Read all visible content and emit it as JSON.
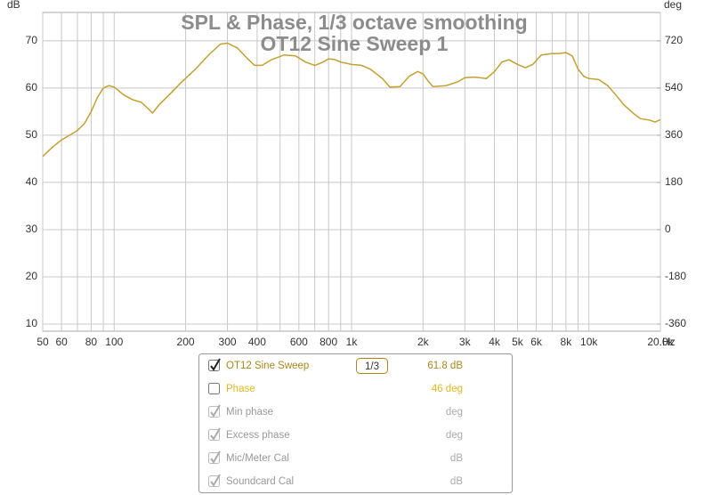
{
  "chart_data": {
    "type": "line",
    "title": "SPL & Phase, 1/3 octave smoothing",
    "subtitle": "OT12 Sine Sweep 1",
    "y_label": "dB",
    "y2_label": "deg",
    "x_label": "Hz",
    "log_x": true,
    "grid": true,
    "xlim": [
      50,
      20000
    ],
    "ylim": [
      8.5,
      76
    ],
    "y2lim": [
      -387,
      828
    ],
    "xticks": [
      50,
      60,
      80,
      100,
      200,
      300,
      400,
      600,
      800,
      {
        "value": 1000,
        "label": "1k"
      },
      {
        "value": 2000,
        "label": "2k"
      },
      {
        "value": 3000,
        "label": "3k"
      },
      {
        "value": 4000,
        "label": "4k"
      },
      {
        "value": 5000,
        "label": "5k"
      },
      {
        "value": 6000,
        "label": "6k"
      },
      {
        "value": 8000,
        "label": "8k"
      },
      {
        "value": 10000,
        "label": "10k"
      },
      {
        "value": 20000,
        "label": "20.0k"
      }
    ],
    "xminor": [
      70,
      90,
      500,
      700,
      900,
      7000,
      9000
    ],
    "yticks": [
      10,
      20,
      30,
      40,
      50,
      60,
      70
    ],
    "y2ticks": [
      -360,
      -180,
      0,
      180,
      360,
      540,
      720
    ],
    "x": [
      50,
      55,
      60,
      70,
      75,
      80,
      85,
      90,
      95,
      100,
      110,
      120,
      130,
      140,
      145,
      155,
      170,
      190,
      220,
      250,
      280,
      300,
      330,
      360,
      390,
      420,
      460,
      520,
      580,
      640,
      700,
      760,
      800,
      850,
      900,
      1000,
      1100,
      1200,
      1350,
      1450,
      1600,
      1750,
      1900,
      2000,
      2100,
      2200,
      2500,
      2800,
      3000,
      3300,
      3700,
      4000,
      4300,
      4600,
      5000,
      5400,
      5800,
      6300,
      7000,
      7500,
      8000,
      8500,
      9000,
      9500,
      10000,
      11000,
      12000,
      13000,
      14000,
      15500,
      16500,
      18000,
      19000,
      20000
    ],
    "series": [
      {
        "name": "OT12 Sine Sweep",
        "color": "#c4a030",
        "values": [
          45.5,
          47.5,
          49,
          51,
          52.5,
          55,
          58,
          60,
          60.5,
          60.2,
          58.5,
          57.5,
          57,
          55.5,
          54.7,
          56.5,
          58.5,
          61,
          64,
          67,
          69.3,
          69.5,
          68.5,
          66.5,
          64.8,
          64.8,
          66,
          67,
          66.8,
          65.5,
          64.8,
          65.5,
          66.2,
          66,
          65.5,
          65,
          64.8,
          64,
          62,
          60.2,
          60.3,
          62.5,
          63.5,
          63,
          61.5,
          60.3,
          60.5,
          61.3,
          62.2,
          62.3,
          62,
          63.5,
          65.5,
          66,
          65,
          64.3,
          65,
          67,
          67.3,
          67.3,
          67.5,
          66.8,
          64,
          62.5,
          62,
          61.8,
          60.5,
          58.5,
          56.5,
          54.5,
          53.5,
          53.2,
          52.8,
          53.3
        ]
      }
    ]
  },
  "legend_panel": {
    "rows": [
      {
        "checked": true,
        "enabled": true,
        "color": "#a8861c",
        "smoothing": "1/3",
        "readout": "61.8 dB"
      },
      {
        "label": "Phase",
        "checked": false,
        "enabled": true,
        "color": "#e0b820",
        "readout": "46 deg"
      },
      {
        "label": "Min phase",
        "checked": true,
        "enabled": false,
        "color": "#999999",
        "readout": "deg"
      },
      {
        "label": "Excess phase",
        "checked": true,
        "enabled": false,
        "color": "#999999",
        "readout": "deg"
      },
      {
        "label": "Mic/Meter Cal",
        "checked": true,
        "enabled": false,
        "color": "#999999",
        "readout": "dB"
      },
      {
        "label": "Soundcard Cal",
        "checked": true,
        "enabled": false,
        "color": "#999999",
        "readout": "dB"
      }
    ]
  }
}
